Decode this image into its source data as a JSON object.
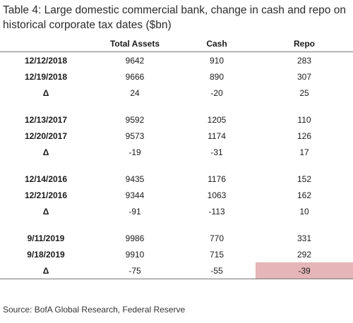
{
  "title": "Table 4: Large domestic commercial bank, change in cash and repo on historical corporate tax dates ($bn)",
  "headers": [
    "",
    "Total Assets",
    "Cash",
    "Repo"
  ],
  "groups": [
    {
      "rows": [
        {
          "date": "12/12/2018",
          "total_assets": "9642",
          "cash": "910",
          "repo": "283"
        },
        {
          "date": "12/19/2018",
          "total_assets": "9666",
          "cash": "890",
          "repo": "307"
        },
        {
          "date": "Δ",
          "total_assets": "24",
          "cash": "-20",
          "repo": "25"
        }
      ]
    },
    {
      "rows": [
        {
          "date": "12/13/2017",
          "total_assets": "9592",
          "cash": "1205",
          "repo": "110"
        },
        {
          "date": "12/20/2017",
          "total_assets": "9573",
          "cash": "1174",
          "repo": "126"
        },
        {
          "date": "Δ",
          "total_assets": "-19",
          "cash": "-31",
          "repo": "17"
        }
      ]
    },
    {
      "rows": [
        {
          "date": "12/14/2016",
          "total_assets": "9435",
          "cash": "1176",
          "repo": "152"
        },
        {
          "date": "12/21/2016",
          "total_assets": "9344",
          "cash": "1063",
          "repo": "162"
        },
        {
          "date": "Δ",
          "total_assets": "-91",
          "cash": "-113",
          "repo": "10"
        }
      ]
    },
    {
      "rows": [
        {
          "date": "9/11/2019",
          "total_assets": "9986",
          "cash": "770",
          "repo": "331"
        },
        {
          "date": "9/18/2019",
          "total_assets": "9910",
          "cash": "715",
          "repo": "292"
        },
        {
          "date": "Δ",
          "total_assets": "-75",
          "cash": "-55",
          "repo": "-39"
        }
      ]
    }
  ],
  "highlight_color": "#e5b5b7",
  "source": "Source: BofA Global Research, Federal Reserve"
}
